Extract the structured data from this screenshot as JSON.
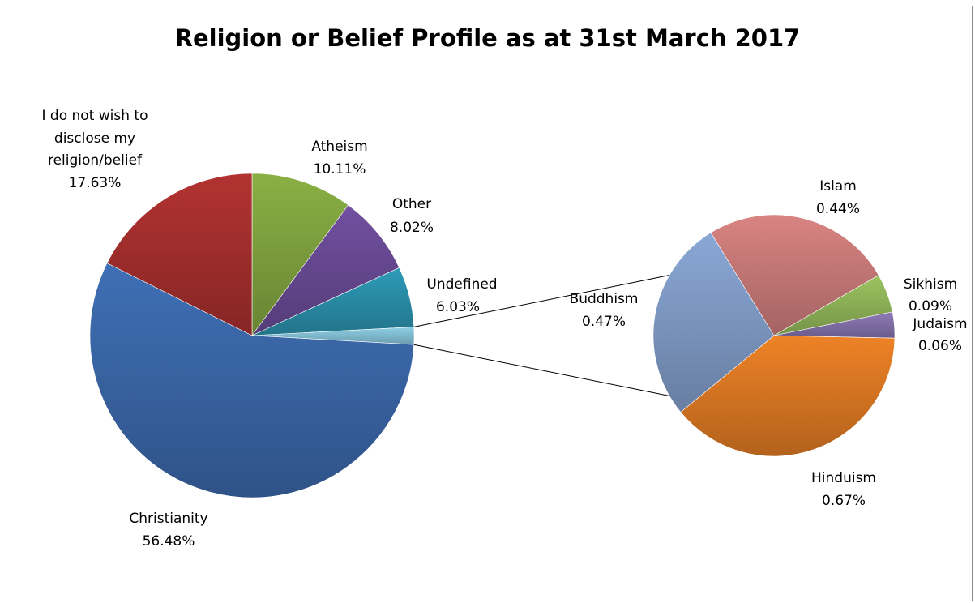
{
  "chart_data": {
    "type": "pie",
    "subtype": "pie-of-pie",
    "title": "Religion or Belief Profile as at 31st March 2017",
    "main_pie": [
      {
        "label": "Atheism",
        "value": 10.11,
        "display": "10.11%",
        "color": "#8ab044"
      },
      {
        "label": "Other",
        "value": 8.02,
        "display": "8.02%",
        "color": "#7150a0"
      },
      {
        "label": "Undefined",
        "value": 6.03,
        "display": "6.03%",
        "color": "#2e9bb8"
      },
      {
        "label": "Other religions (combined)",
        "value": 1.73,
        "display": "",
        "color": "#8fd0e6"
      },
      {
        "label": "Christianity",
        "value": 56.48,
        "display": "56.48%",
        "color": "#3f6fb5"
      },
      {
        "label": "I do not wish to disclose my religion/belief",
        "value": 17.63,
        "display": "17.63%",
        "color": "#b23331"
      }
    ],
    "secondary_pie": [
      {
        "label": "Sikhism",
        "value": 0.09,
        "display": "0.09%",
        "color": "#9cc460"
      },
      {
        "label": "Judaism",
        "value": 0.06,
        "display": "0.06%",
        "color": "#8f7ab8"
      },
      {
        "label": "Hinduism",
        "value": 0.67,
        "display": "0.67%",
        "color": "#ee8226"
      },
      {
        "label": "Buddhism",
        "value": 0.47,
        "display": "0.47%",
        "color": "#8aa8d6"
      },
      {
        "label": "Islam",
        "value": 0.44,
        "display": "0.44%",
        "color": "#d98482"
      }
    ],
    "legend": "none"
  }
}
